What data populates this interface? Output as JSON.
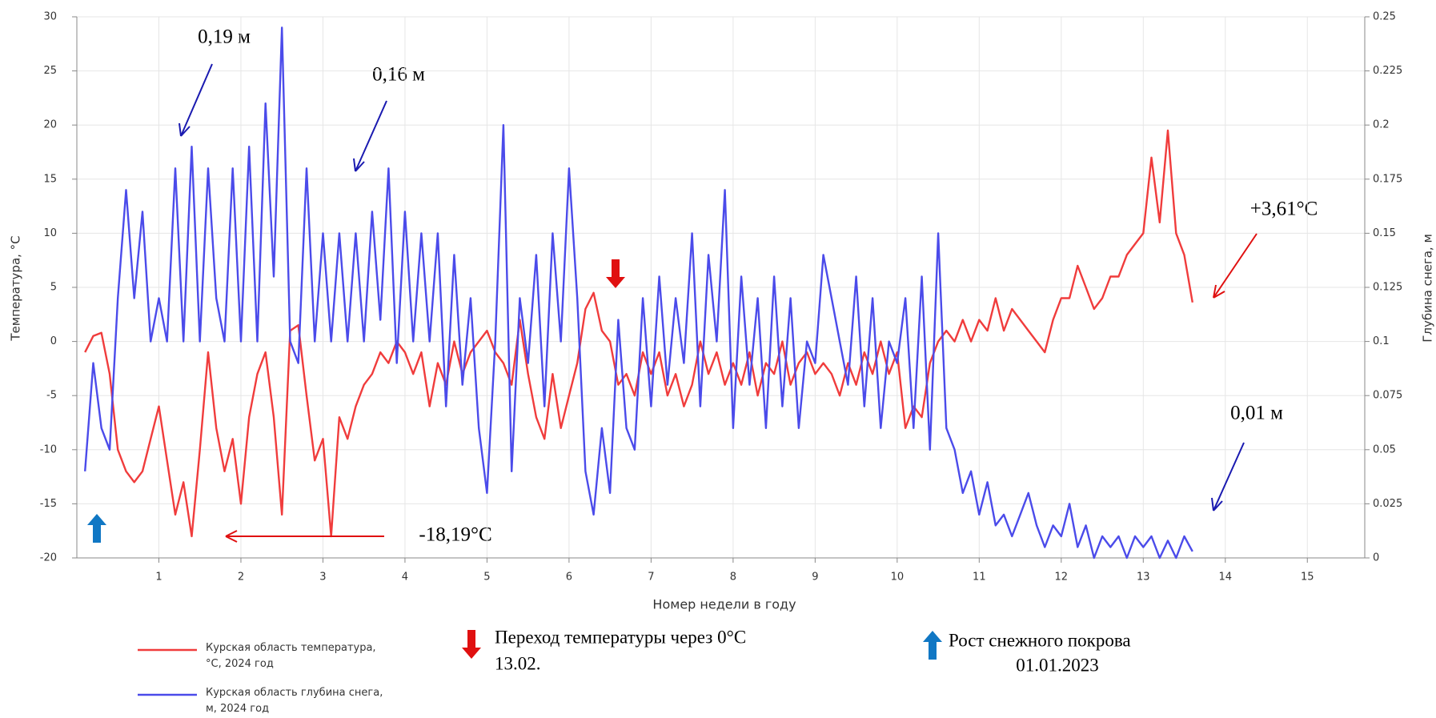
{
  "chart_data": {
    "type": "line",
    "x_label": "Номер недели в году",
    "y_label": "Температура, °С",
    "y2_label": "Глубина снега, м",
    "xlim": [
      0,
      15.7
    ],
    "xticks": [
      1,
      2,
      3,
      4,
      5,
      6,
      7,
      8,
      9,
      10,
      11,
      12,
      13,
      14,
      15
    ],
    "ylim": [
      -20,
      30
    ],
    "yticks": [
      -20,
      -15,
      -10,
      -5,
      0,
      5,
      10,
      15,
      20,
      25,
      30
    ],
    "y2lim": [
      0,
      0.25
    ],
    "y2ticks": [
      0,
      0.025,
      0.05,
      0.075,
      0.1,
      0.125,
      0.15,
      0.175,
      0.2,
      0.225,
      0.25
    ],
    "grid": true,
    "x": [
      0.1,
      0.2,
      0.3,
      0.4,
      0.5,
      0.6,
      0.7,
      0.8,
      0.9,
      1.0,
      1.1,
      1.2,
      1.3,
      1.4,
      1.5,
      1.6,
      1.7,
      1.8,
      1.9,
      2.0,
      2.1,
      2.2,
      2.3,
      2.4,
      2.5,
      2.6,
      2.7,
      2.8,
      2.9,
      3.0,
      3.1,
      3.2,
      3.3,
      3.4,
      3.5,
      3.6,
      3.7,
      3.8,
      3.9,
      4.0,
      4.1,
      4.2,
      4.3,
      4.4,
      4.5,
      4.6,
      4.7,
      4.8,
      4.9,
      5.0,
      5.1,
      5.2,
      5.3,
      5.4,
      5.5,
      5.6,
      5.7,
      5.8,
      5.9,
      6.0,
      6.1,
      6.2,
      6.3,
      6.4,
      6.5,
      6.6,
      6.7,
      6.8,
      6.9,
      7.0,
      7.1,
      7.2,
      7.3,
      7.4,
      7.5,
      7.6,
      7.7,
      7.8,
      7.9,
      8.0,
      8.1,
      8.2,
      8.3,
      8.4,
      8.5,
      8.6,
      8.7,
      8.8,
      8.9,
      9.0,
      9.1,
      9.2,
      9.3,
      9.4,
      9.5,
      9.6,
      9.7,
      9.8,
      9.9,
      10.0,
      10.1,
      10.2,
      10.3,
      10.4,
      10.5,
      10.6,
      10.7,
      10.8,
      10.9,
      11.0,
      11.1,
      11.2,
      11.3,
      11.4,
      11.5,
      11.6,
      11.7,
      11.8,
      11.9,
      12.0,
      12.1,
      12.2,
      12.3,
      12.4,
      12.5,
      12.6,
      12.7,
      12.8,
      12.9,
      13.0,
      13.1,
      13.2,
      13.3,
      13.4,
      13.5,
      13.6
    ],
    "series": [
      {
        "name": "Курская область температура, °С, 2024 год",
        "color": "#f03c3c",
        "axis": "y",
        "values": [
          -1,
          0.5,
          0.8,
          -3,
          -10,
          -12,
          -13,
          -12,
          -9,
          -6,
          -11,
          -16,
          -13,
          -18,
          -10,
          -1,
          -8,
          -12,
          -9,
          -15,
          -7,
          -3,
          -1,
          -7,
          -16,
          1,
          1.5,
          -5,
          -11,
          -9,
          -18,
          -7,
          -9,
          -6,
          -4,
          -3,
          -1,
          -2,
          0,
          -1,
          -3,
          -1,
          -6,
          -2,
          -4,
          0,
          -3,
          -1,
          0,
          1,
          -1,
          -2,
          -4,
          2,
          -3,
          -7,
          -9,
          -3,
          -8,
          -5,
          -2,
          3,
          4.5,
          1,
          0,
          -4,
          -3,
          -5,
          -1,
          -3,
          -1,
          -5,
          -3,
          -6,
          -4,
          0,
          -3,
          -1,
          -4,
          -2,
          -4,
          -1,
          -5,
          -2,
          -3,
          0,
          -4,
          -2,
          -1,
          -3,
          -2,
          -3,
          -5,
          -2,
          -4,
          -1,
          -3,
          0,
          -3,
          -1,
          -8,
          -6,
          -7,
          -2,
          0,
          1,
          0,
          2,
          0,
          2,
          1,
          4,
          1,
          3,
          2,
          1,
          0,
          -1,
          2,
          4,
          4,
          7,
          5,
          3,
          4,
          6,
          6,
          8,
          9,
          10,
          17,
          11,
          19.5,
          10,
          8,
          3.61
        ]
      },
      {
        "name": "Курская область глубина снега, м, 2024 год",
        "color": "#4b4bea",
        "axis": "y2",
        "values": [
          0.04,
          0.09,
          0.06,
          0.05,
          0.12,
          0.17,
          0.12,
          0.16,
          0.1,
          0.12,
          0.1,
          0.18,
          0.1,
          0.19,
          0.1,
          0.18,
          0.12,
          0.1,
          0.18,
          0.1,
          0.19,
          0.1,
          0.21,
          0.13,
          0.245,
          0.1,
          0.09,
          0.18,
          0.1,
          0.15,
          0.1,
          0.15,
          0.1,
          0.15,
          0.1,
          0.16,
          0.11,
          0.18,
          0.09,
          0.16,
          0.1,
          0.15,
          0.1,
          0.15,
          0.07,
          0.14,
          0.08,
          0.12,
          0.06,
          0.03,
          0.1,
          0.2,
          0.04,
          0.12,
          0.09,
          0.14,
          0.07,
          0.15,
          0.1,
          0.18,
          0.12,
          0.04,
          0.02,
          0.06,
          0.03,
          0.11,
          0.06,
          0.05,
          0.12,
          0.07,
          0.13,
          0.08,
          0.12,
          0.09,
          0.15,
          0.07,
          0.14,
          0.1,
          0.17,
          0.06,
          0.13,
          0.08,
          0.12,
          0.06,
          0.13,
          0.07,
          0.12,
          0.06,
          0.1,
          0.09,
          0.14,
          0.12,
          0.1,
          0.08,
          0.13,
          0.07,
          0.12,
          0.06,
          0.1,
          0.09,
          0.12,
          0.06,
          0.13,
          0.05,
          0.15,
          0.06,
          0.05,
          0.03,
          0.04,
          0.02,
          0.035,
          0.015,
          0.02,
          0.01,
          0.02,
          0.03,
          0.015,
          0.005,
          0.015,
          0.01,
          0.025,
          0.005,
          0.015,
          0,
          0.01,
          0.005,
          0.01,
          0,
          0.01,
          0.005,
          0.01,
          0,
          0.008,
          0,
          0.01,
          0.003
        ]
      }
    ],
    "annotations": [
      "0,19 м",
      "0,16 м",
      "+3,61°C",
      "0,01 м",
      "-18,19°C"
    ],
    "notes": [
      [
        "Переход температуры через 0°C",
        "13.02."
      ],
      [
        "Рост снежного покрова",
        "01.01.2023"
      ]
    ]
  }
}
